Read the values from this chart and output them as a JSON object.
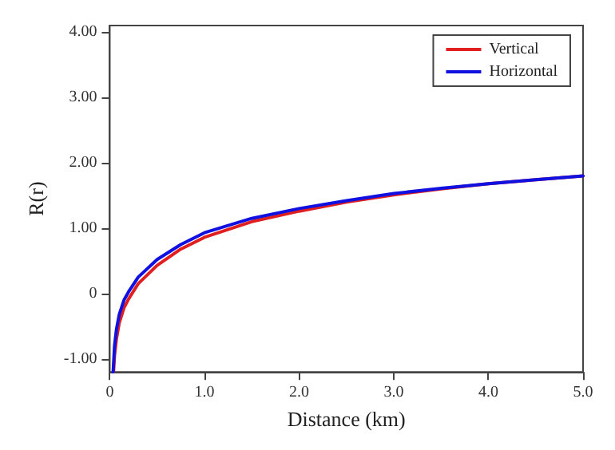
{
  "chart_data": {
    "type": "line",
    "xlabel": "Distance (km)",
    "ylabel": "R(r)",
    "xlim": [
      0,
      5
    ],
    "xticks": [
      0,
      {
        "value": 1,
        "label": "1.0"
      },
      {
        "value": 2,
        "label": "2.0"
      },
      {
        "value": 3,
        "label": "3.0"
      },
      {
        "value": 4,
        "label": "4.0"
      },
      {
        "value": 5,
        "label": "5.0"
      }
    ],
    "ylim": [
      -1.2,
      4.1
    ],
    "yticks": [
      {
        "value": -1,
        "label": "-1.00"
      },
      0,
      {
        "value": 1,
        "label": "1.00"
      },
      {
        "value": 2,
        "label": "2.00"
      },
      {
        "value": 3,
        "label": "3.00"
      },
      {
        "value": 4,
        "label": "4.00"
      }
    ],
    "grid": false,
    "legend": "top right",
    "marker": "none",
    "line_style": "solid",
    "series": [
      {
        "name": "Vertical",
        "color": "#e02020",
        "x": [
          0.04,
          0.05,
          0.07,
          0.1,
          0.15,
          0.2,
          0.3,
          0.5,
          0.75,
          1,
          1.5,
          2,
          2.5,
          3,
          3.5,
          4,
          4.5,
          5
        ],
        "values": [
          -1.2,
          -0.95,
          -0.7,
          -0.45,
          -0.22,
          -0.08,
          0.15,
          0.43,
          0.68,
          0.86,
          1.1,
          1.26,
          1.4,
          1.51,
          1.6,
          1.68,
          1.74,
          1.8
        ]
      },
      {
        "name": "Horizontal",
        "color": "#1010e0",
        "x": [
          0.035,
          0.05,
          0.07,
          0.1,
          0.15,
          0.2,
          0.3,
          0.5,
          0.75,
          1,
          1.5,
          2,
          2.5,
          3,
          3.5,
          4,
          4.5,
          5
        ],
        "values": [
          -1.2,
          -0.8,
          -0.55,
          -0.32,
          -0.1,
          0.03,
          0.25,
          0.52,
          0.75,
          0.93,
          1.15,
          1.3,
          1.42,
          1.53,
          1.61,
          1.68,
          1.74,
          1.8
        ]
      }
    ]
  }
}
